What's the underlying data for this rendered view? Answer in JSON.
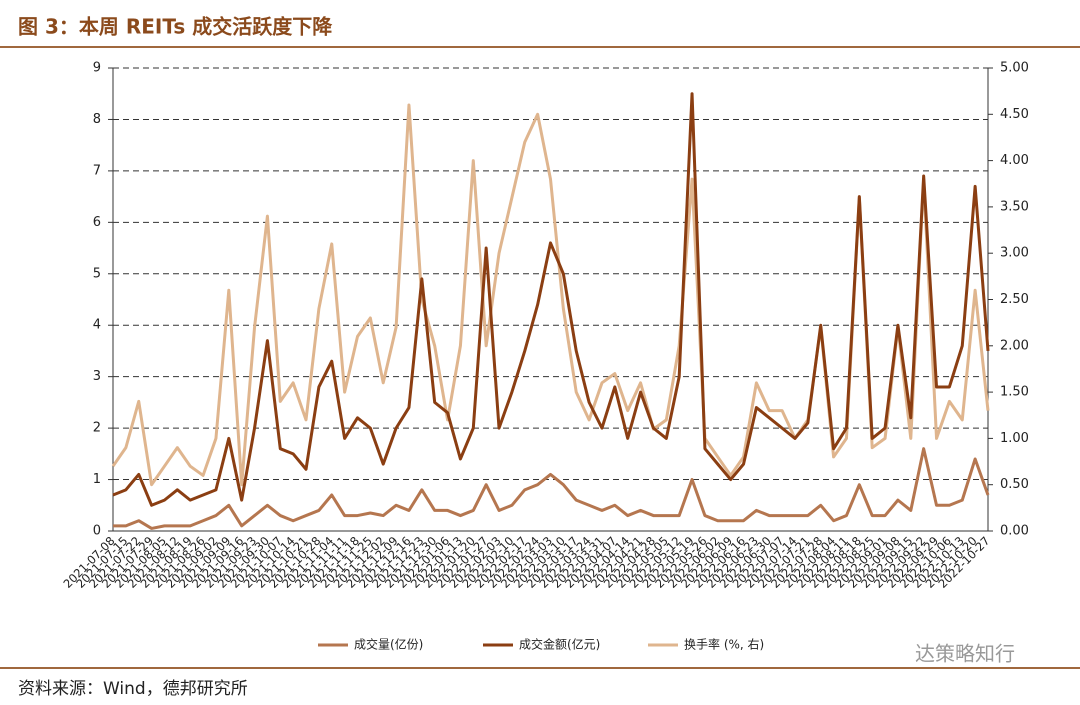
{
  "chart_data": {
    "type": "line",
    "title": "图 3：本周 REITs 成交活跃度下降",
    "source": "资料来源：Wind，德邦研究所",
    "watermark": "达策略知行",
    "categories": [
      "2021-07-08",
      "2021-07-15",
      "2021-07-22",
      "2021-07-29",
      "2021-08-05",
      "2021-08-12",
      "2021-08-19",
      "2021-08-26",
      "2021-09-02",
      "2021-09-09",
      "2021-09-16",
      "2021-09-23",
      "2021-09-30",
      "2021-10-07",
      "2021-10-14",
      "2021-10-21",
      "2021-10-28",
      "2021-11-04",
      "2021-11-11",
      "2021-11-18",
      "2021-11-25",
      "2021-12-02",
      "2021-12-09",
      "2021-12-16",
      "2021-12-23",
      "2021-12-30",
      "2022-01-06",
      "2022-01-13",
      "2022-01-20",
      "2022-01-27",
      "2022-02-03",
      "2022-02-10",
      "2022-02-17",
      "2022-02-24",
      "2022-03-03",
      "2022-03-10",
      "2022-03-17",
      "2022-03-24",
      "2022-03-31",
      "2022-04-07",
      "2022-04-14",
      "2022-04-21",
      "2022-04-28",
      "2022-05-05",
      "2022-05-12",
      "2022-05-19",
      "2022-05-26",
      "2022-06-02",
      "2022-06-09",
      "2022-06-16",
      "2022-06-23",
      "2022-06-30",
      "2022-07-07",
      "2022-07-14",
      "2022-07-21",
      "2022-07-28",
      "2022-08-04",
      "2022-08-11",
      "2022-08-18",
      "2022-08-25",
      "2022-09-01",
      "2022-09-08",
      "2022-09-15",
      "2022-09-22",
      "2022-09-29",
      "2022-10-06",
      "2022-10-13",
      "2022-10-20",
      "2022-10-27"
    ],
    "series": [
      {
        "name": "成交量(亿份)",
        "color": "#b5764f",
        "values": [
          0.1,
          0.1,
          0.2,
          0.05,
          0.1,
          0.1,
          0.1,
          0.2,
          0.3,
          0.5,
          0.1,
          0.3,
          0.5,
          0.3,
          0.2,
          0.3,
          0.4,
          0.7,
          0.3,
          0.3,
          0.35,
          0.3,
          0.5,
          0.4,
          0.8,
          0.4,
          0.4,
          0.3,
          0.4,
          0.9,
          0.4,
          0.5,
          0.8,
          0.9,
          1.1,
          0.9,
          0.6,
          0.5,
          0.4,
          0.5,
          0.3,
          0.4,
          0.3,
          0.3,
          0.3,
          1.0,
          0.3,
          0.2,
          0.2,
          0.2,
          0.4,
          0.3,
          0.3,
          0.3,
          0.3,
          0.5,
          0.2,
          0.3,
          0.9,
          0.3,
          0.3,
          0.6,
          0.4,
          1.6,
          0.5,
          0.5,
          0.6,
          1.4,
          0.7
        ]
      },
      {
        "name": "成交金额(亿元)",
        "color": "#8b3e12",
        "values": [
          0.7,
          0.8,
          1.1,
          0.5,
          0.6,
          0.8,
          0.6,
          0.7,
          0.8,
          1.8,
          0.6,
          2.0,
          3.7,
          1.6,
          1.5,
          1.2,
          2.8,
          3.3,
          1.8,
          2.2,
          2.0,
          1.3,
          2.0,
          2.4,
          4.9,
          2.5,
          2.3,
          1.4,
          2.0,
          5.5,
          2.0,
          2.7,
          3.5,
          4.4,
          5.6,
          5.0,
          3.5,
          2.5,
          2.0,
          2.8,
          1.8,
          2.7,
          2.0,
          1.8,
          3.0,
          8.5,
          1.6,
          1.3,
          1.0,
          1.3,
          2.4,
          2.2,
          2.0,
          1.8,
          2.1,
          4.0,
          1.6,
          2.0,
          6.5,
          1.8,
          2.0,
          4.0,
          2.2,
          6.9,
          2.8,
          2.8,
          3.6,
          6.7,
          3.5
        ]
      },
      {
        "name": "换手率 (%, 右)",
        "color": "#dfb58e",
        "axis": "y2",
        "values": [
          0.7,
          0.9,
          1.4,
          0.5,
          0.7,
          0.9,
          0.7,
          0.6,
          1.0,
          2.6,
          0.5,
          2.2,
          3.4,
          1.4,
          1.6,
          1.2,
          2.4,
          3.1,
          1.5,
          2.1,
          2.3,
          1.6,
          2.2,
          4.6,
          2.5,
          2.0,
          1.2,
          2.0,
          4.0,
          2.0,
          3.0,
          3.6,
          4.2,
          4.5,
          3.8,
          2.4,
          1.5,
          1.2,
          1.6,
          1.7,
          1.3,
          1.6,
          1.1,
          1.2,
          2.0,
          3.8,
          1.0,
          0.8,
          0.6,
          0.8,
          1.6,
          1.3,
          1.3,
          1.0,
          1.2,
          2.2,
          0.8,
          1.0,
          3.6,
          0.9,
          1.0,
          2.2,
          1.0,
          3.8,
          1.0,
          1.4,
          1.2,
          2.6,
          1.3
        ]
      }
    ],
    "ylim": [
      0,
      9
    ],
    "yticks": [
      0,
      1,
      2,
      3,
      4,
      5,
      6,
      7,
      8,
      9
    ],
    "y2lim": [
      0,
      5
    ],
    "y2ticks": [
      {
        "value": 0,
        "label": "0.00"
      },
      {
        "value": 0.5,
        "label": "0.50"
      },
      {
        "value": 1,
        "label": "1.00"
      },
      {
        "value": 1.5,
        "label": "1.50"
      },
      {
        "value": 2,
        "label": "2.00"
      },
      {
        "value": 2.5,
        "label": "2.50"
      },
      {
        "value": 3,
        "label": "3.00"
      },
      {
        "value": 3.5,
        "label": "3.50"
      },
      {
        "value": 4,
        "label": "4.00"
      },
      {
        "value": 4.5,
        "label": "4.50"
      },
      {
        "value": 5,
        "label": "5.00"
      }
    ],
    "grid": true
  }
}
